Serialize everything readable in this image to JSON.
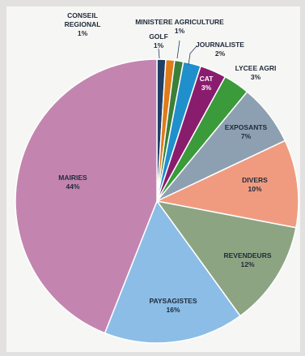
{
  "chart_data": {
    "type": "pie",
    "title": "",
    "slices": [
      {
        "label": "CONSEIL REGIONAL",
        "pct_text": "1%",
        "value": 1,
        "color": "#1f3f66"
      },
      {
        "label": "GOLF",
        "pct_text": "1%",
        "value": 1,
        "color": "#e07b1a"
      },
      {
        "label": "MINISTERE AGRICULTURE",
        "pct_text": "1%",
        "value": 1,
        "color": "#3c7f3a"
      },
      {
        "label": "JOURNALISTE",
        "pct_text": "2%",
        "value": 2,
        "color": "#1f90cc"
      },
      {
        "label": "CAT",
        "pct_text": "3%",
        "value": 3,
        "color": "#8a1c6e"
      },
      {
        "label": "LYCEE AGRI",
        "pct_text": "3%",
        "value": 3,
        "color": "#3b9a3a"
      },
      {
        "label": "EXPOSANTS",
        "pct_text": "7%",
        "value": 7,
        "color": "#8da0b2"
      },
      {
        "label": "DIVERS",
        "pct_text": "10%",
        "value": 10,
        "color": "#f09b80"
      },
      {
        "label": "REVENDEURS",
        "pct_text": "12%",
        "value": 12,
        "color": "#8da483"
      },
      {
        "label": "PAYSAGISTES",
        "pct_text": "16%",
        "value": 16,
        "color": "#8bbde6"
      },
      {
        "label": "MAIRIES",
        "pct_text": "44%",
        "value": 44,
        "color": "#c385b0"
      }
    ]
  }
}
